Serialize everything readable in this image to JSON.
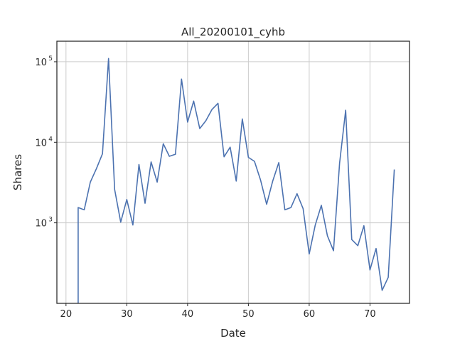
{
  "chart_data": {
    "type": "line",
    "title": "All_20200101_cyhb",
    "xlabel": "Date",
    "ylabel": "Shares",
    "x_scale": "linear",
    "y_scale": "log",
    "xlim": [
      18.5,
      76.5
    ],
    "ylim": [
      100,
      180000
    ],
    "x_ticks": [
      20,
      30,
      40,
      50,
      60,
      70
    ],
    "y_ticks": [
      {
        "value": 1000,
        "base": "10",
        "exp": "3"
      },
      {
        "value": 10000,
        "base": "10",
        "exp": "4"
      },
      {
        "value": 100000,
        "base": "10",
        "exp": "5"
      }
    ],
    "grid": true,
    "line_color": "#4c72b0",
    "series": [
      {
        "x": [
          22,
          22,
          23,
          24,
          25,
          26,
          27,
          28,
          29,
          30,
          31,
          32,
          33,
          34,
          35,
          36,
          37,
          38,
          39,
          40,
          41,
          42,
          43,
          44,
          45,
          46,
          47,
          48,
          49,
          50,
          51,
          52,
          53,
          54,
          55,
          56,
          57,
          58,
          59,
          60,
          61,
          62,
          63,
          64,
          65,
          66,
          67,
          68,
          69,
          70,
          71,
          72,
          73,
          74
        ],
        "y": [
          100,
          1550,
          1450,
          3200,
          4700,
          7200,
          110000,
          2600,
          1020,
          1950,
          940,
          5300,
          1750,
          5700,
          3200,
          9600,
          6700,
          7100,
          61000,
          17800,
          32500,
          14800,
          18500,
          25500,
          30500,
          6600,
          8700,
          3300,
          19500,
          6500,
          5800,
          3400,
          1700,
          3300,
          5600,
          1450,
          1550,
          2300,
          1500,
          410,
          940,
          1650,
          690,
          450,
          5500,
          25000,
          620,
          520,
          920,
          260,
          480,
          145,
          210,
          4600
        ]
      }
    ]
  }
}
